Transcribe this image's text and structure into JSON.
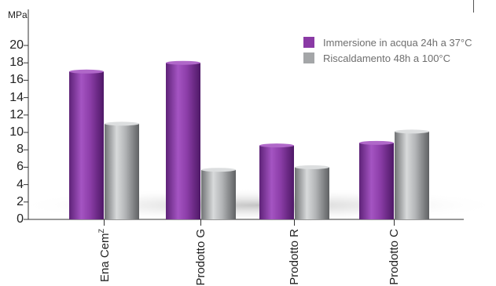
{
  "chart_data": {
    "type": "bar",
    "categories": [
      "Ena Cem",
      "Prodotto G",
      "Prodotto R",
      "Prodotto C"
    ],
    "category_superscripts": [
      "Z",
      "",
      "",
      ""
    ],
    "ylabel": "MPa",
    "ylim": [
      0,
      22
    ],
    "yticks": [
      0,
      2,
      4,
      6,
      8,
      10,
      12,
      14,
      16,
      18,
      20
    ],
    "legend_position": "top-right",
    "series": [
      {
        "name": "Immersione in acqua 24h a 37°C",
        "values": [
          17,
          18,
          8.5,
          8.8
        ],
        "color": "#8a3aa5"
      },
      {
        "name": "Riscaldamento 48h a 100°C",
        "values": [
          11,
          5.7,
          6,
          10.1
        ],
        "color": "#a4a6a8"
      }
    ]
  }
}
